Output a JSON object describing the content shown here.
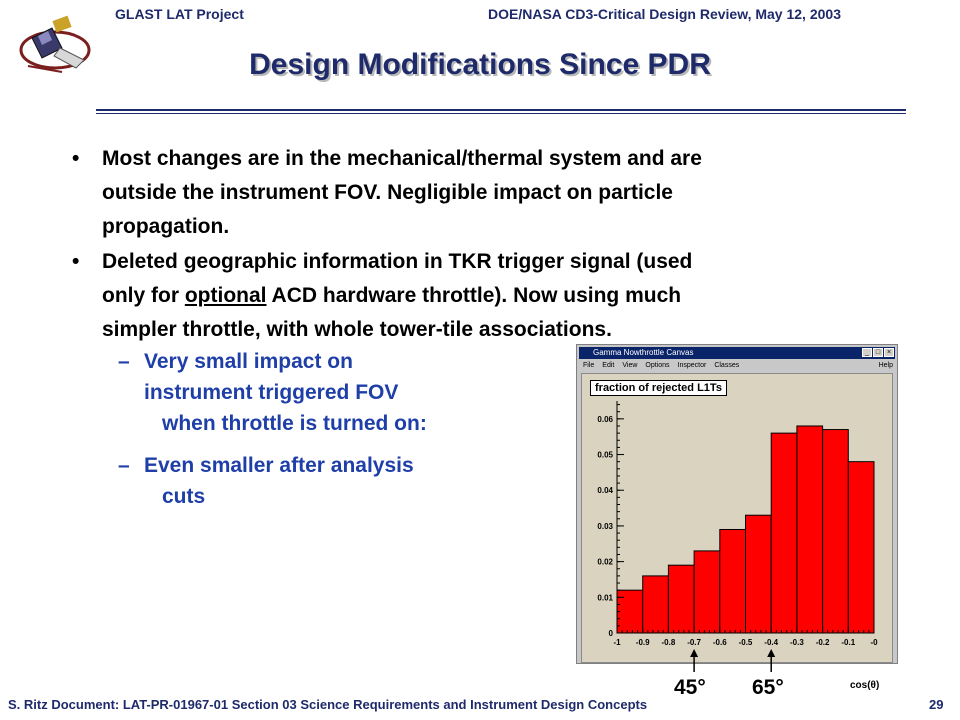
{
  "header": {
    "left": "GLAST LAT Project",
    "right": "DOE/NASA CD3-Critical Design Review, May 12, 2003"
  },
  "slide": {
    "title": "Design Modifications Since PDR",
    "bullet_glyph": "•",
    "dash_glyph": "–",
    "bullet1": {
      "lines": [
        "Most changes are in the mechanical/thermal system and are",
        "outside the instrument FOV.  Negligible impact on particle",
        "propagation."
      ]
    },
    "bullet2": {
      "line1": "Deleted geographic information in TKR trigger signal (used",
      "line2_before": "only for ",
      "line2_underlined": "optional",
      "line2_after": " ACD hardware throttle).  Now using much",
      "line3": "simpler throttle, with whole tower-tile associations."
    },
    "sub1": {
      "lines": [
        "Very small impact on",
        "instrument triggered FOV",
        "when throttle is turned on:"
      ]
    },
    "sub2": {
      "lines": [
        "Even smaller after analysis",
        "cuts"
      ]
    }
  },
  "root_window": {
    "title": "Gamma Nowthrottle Canvas",
    "menu": [
      "File",
      "Edit",
      "View",
      "Options",
      "Inspector",
      "Classes"
    ],
    "help": "Help",
    "histogram_title": "fraction of rejected L1Ts",
    "icon": "root-window-icon"
  },
  "chart_data": {
    "type": "bar",
    "title": "fraction of rejected L1Ts",
    "xlabel": "cos(θ)",
    "ylabel": "",
    "xlim": [
      -1,
      0
    ],
    "ylim": [
      0,
      0.065
    ],
    "bin_width": 0.1,
    "bins": [
      -1.0,
      -0.9,
      -0.8,
      -0.7,
      -0.6,
      -0.5,
      -0.4,
      -0.3,
      -0.2,
      -0.1
    ],
    "values": [
      0.012,
      0.016,
      0.019,
      0.023,
      0.029,
      0.033,
      0.056,
      0.058,
      0.057,
      0.048
    ],
    "xticks": [
      -1,
      -0.9,
      -0.8,
      -0.7,
      -0.6,
      -0.5,
      -0.4,
      -0.3,
      -0.2,
      -0.1,
      0
    ],
    "xticklabels": [
      "-1",
      "-0.9",
      "-0.8",
      "-0.7",
      "-0.6",
      "-0.5",
      "-0.4",
      "-0.3",
      "-0.2",
      "-0.1",
      "-0"
    ],
    "yticks": [
      0,
      0.01,
      0.02,
      0.03,
      0.04,
      0.05,
      0.06
    ],
    "yticklabels": [
      "0",
      "0.01",
      "0.02",
      "0.03",
      "0.04",
      "0.05",
      "0.06"
    ],
    "bar_color": "#ff0000",
    "background_color": "#d9d3c0",
    "markers": [
      {
        "label": "45°",
        "x": -0.7
      },
      {
        "label": "65°",
        "x": -0.4
      }
    ]
  },
  "footer": {
    "text": "S. Ritz  Document: LAT-PR-01967-01   Section 03 Science Requirements and Instrument Design Concepts",
    "page": "29"
  },
  "colors": {
    "heading": "#1f2a6b",
    "sub_bullets": "#1f3fa8"
  }
}
